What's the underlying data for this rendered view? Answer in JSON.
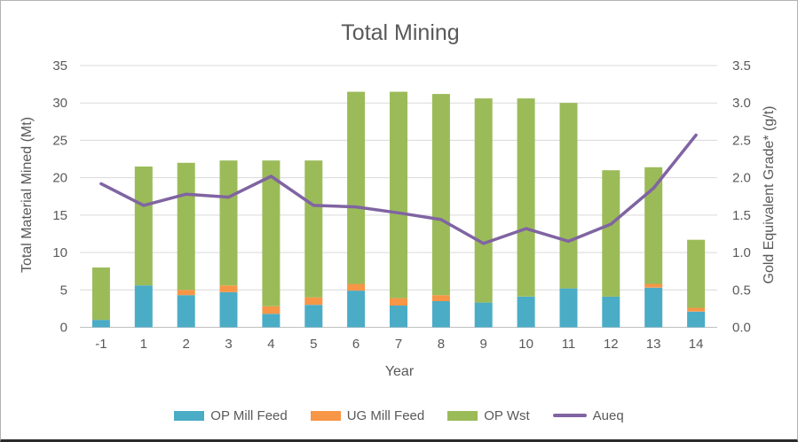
{
  "window": {
    "background": "#ffffff",
    "border_color": "#b3b3b3",
    "bottom_edge_color": "#2b2b2b"
  },
  "colors": {
    "text": "#595959",
    "gridline": "#d9d9d9",
    "axis_line": "#bfbfbf"
  },
  "chart_data": {
    "type": "bar",
    "subtype": "stacked-bar-with-line-overlay",
    "title": "Total Mining",
    "xlabel": "Year",
    "ylabel_left": "Total Material Mined (Mt)",
    "ylabel_right": "Gold Equivalent Grade* (g/t)",
    "categories": [
      "-1",
      "1",
      "2",
      "3",
      "4",
      "5",
      "6",
      "7",
      "8",
      "9",
      "10",
      "11",
      "12",
      "13",
      "14"
    ],
    "series": [
      {
        "name": "OP Mill Feed",
        "type": "bar",
        "stack": true,
        "axis": "left",
        "color": "#4BACC6",
        "values": [
          1.0,
          5.6,
          4.3,
          4.7,
          1.8,
          3.0,
          4.9,
          2.9,
          3.5,
          3.3,
          4.1,
          5.2,
          4.1,
          5.3,
          2.1
        ]
      },
      {
        "name": "UG Mill Feed",
        "type": "bar",
        "stack": true,
        "axis": "left",
        "color": "#F79646",
        "values": [
          0,
          0,
          0.7,
          0.9,
          1.0,
          1.0,
          0.9,
          1.0,
          0.8,
          0,
          0,
          0,
          0,
          0.5,
          0.5
        ]
      },
      {
        "name": "OP Wst",
        "type": "bar",
        "stack": true,
        "axis": "left",
        "color": "#9BBB59",
        "values": [
          7.0,
          15.9,
          17.0,
          16.7,
          19.5,
          18.3,
          25.7,
          27.6,
          26.9,
          27.3,
          26.5,
          24.8,
          16.9,
          15.6,
          9.1
        ]
      },
      {
        "name": "Aueq",
        "type": "line",
        "axis": "right",
        "color": "#8064A2",
        "values": [
          1.92,
          1.63,
          1.78,
          1.74,
          2.02,
          1.63,
          1.61,
          1.53,
          1.44,
          1.12,
          1.32,
          1.15,
          1.38,
          1.86,
          2.57
        ]
      }
    ],
    "stack_totals": [
      8.0,
      21.5,
      22.0,
      22.3,
      22.3,
      22.3,
      31.5,
      31.5,
      31.2,
      30.6,
      30.6,
      30.0,
      21.0,
      21.4,
      11.7
    ],
    "left_axis": {
      "min": 0,
      "max": 35,
      "step": 5,
      "ticks": [
        0,
        5,
        10,
        15,
        20,
        25,
        30,
        35
      ]
    },
    "right_axis": {
      "min": 0,
      "max": 3.5,
      "step": 0.5,
      "ticks": [
        "0.0",
        "0.5",
        "1.0",
        "1.5",
        "2.0",
        "2.5",
        "3.0",
        "3.5"
      ]
    },
    "grid": true,
    "legend_position": "bottom"
  }
}
